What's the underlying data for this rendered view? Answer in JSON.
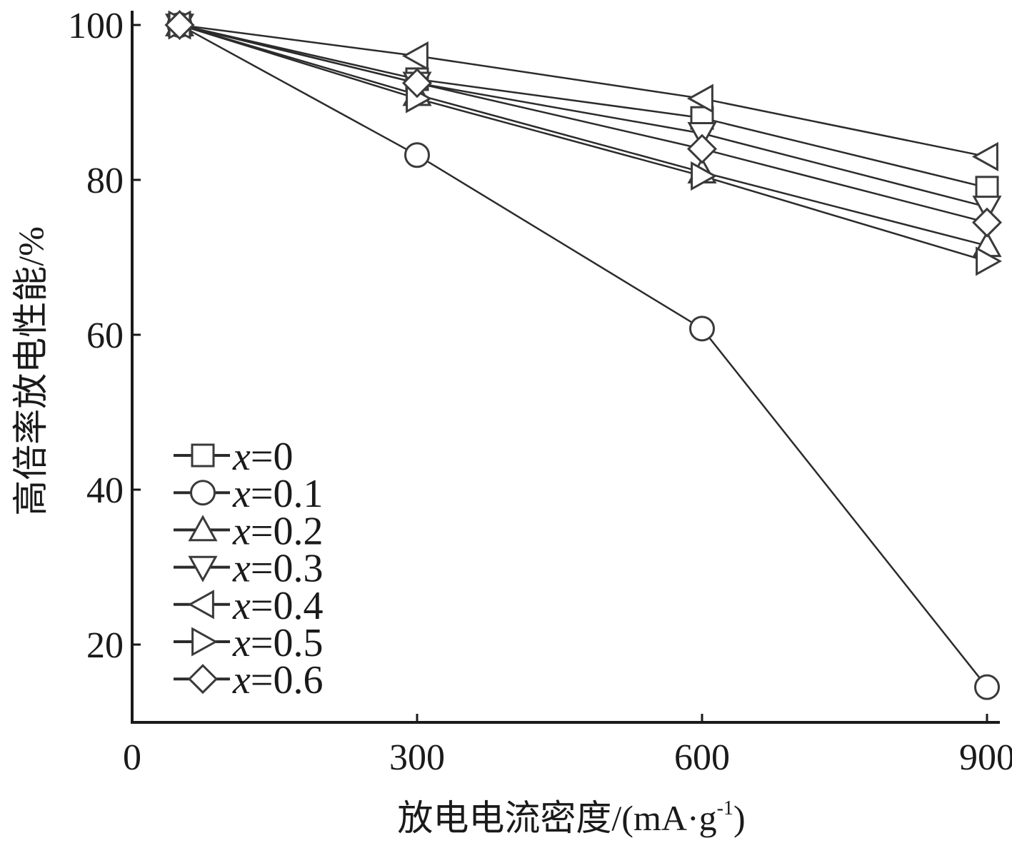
{
  "chart_data": {
    "type": "line",
    "title": "",
    "xlabel": "放电电流密度/(mA·g",
    "xlabel_sup": "-1",
    "xlabel_close": ")",
    "ylabel": "高倍率放电性能/%",
    "xlim": [
      0,
      900
    ],
    "ylim": [
      10,
      100
    ],
    "xticks": [
      0,
      300,
      600,
      900
    ],
    "yticks": [
      20,
      40,
      60,
      80,
      100
    ],
    "xtick_labels": [
      "0",
      "300",
      "600",
      "900"
    ],
    "ytick_labels": [
      "20",
      "40",
      "60",
      "80",
      "100"
    ],
    "x": [
      50,
      300,
      600,
      900
    ],
    "grid": false,
    "legend_position": "bottom-left",
    "series": [
      {
        "name": "x=0",
        "var": "x",
        "eq": "=0",
        "marker": "square",
        "values": [
          100,
          93,
          88,
          79
        ]
      },
      {
        "name": "x=0.1",
        "var": "x",
        "eq": "=0.1",
        "marker": "circle",
        "values": [
          100,
          83.2,
          60.8,
          14.5
        ]
      },
      {
        "name": "x=0.2",
        "var": "x",
        "eq": "=0.2",
        "marker": "triangle-up",
        "values": [
          100,
          91,
          81,
          71.5
        ]
      },
      {
        "name": "x=0.3",
        "var": "x",
        "eq": "=0.3",
        "marker": "triangle-down",
        "values": [
          100,
          92.5,
          86,
          76.5
        ]
      },
      {
        "name": "x=0.4",
        "var": "x",
        "eq": "=0.4",
        "marker": "triangle-left",
        "values": [
          100,
          96,
          90.5,
          83
        ]
      },
      {
        "name": "x=0.5",
        "var": "x",
        "eq": "=0.5",
        "marker": "triangle-right",
        "values": [
          100,
          90.5,
          80.5,
          69.5
        ]
      },
      {
        "name": "x=0.6",
        "var": "x",
        "eq": "=0.6",
        "marker": "diamond",
        "values": [
          100,
          92.5,
          84,
          74.5
        ]
      }
    ],
    "colors": {
      "axis": "#1a1a1a",
      "line": "#2b2b2b",
      "marker_stroke": "#3a3a3a",
      "marker_fill": "#ffffff"
    }
  }
}
